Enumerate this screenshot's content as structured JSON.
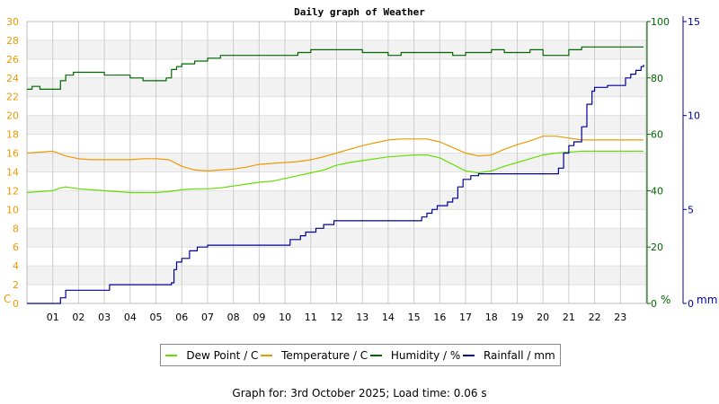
{
  "chart_data": {
    "type": "line",
    "title": "Daily graph of Weather",
    "x_ticks": [
      "01",
      "02",
      "03",
      "04",
      "05",
      "06",
      "07",
      "08",
      "09",
      "10",
      "11",
      "12",
      "13",
      "14",
      "15",
      "16",
      "17",
      "18",
      "19",
      "20",
      "21",
      "22",
      "23"
    ],
    "xlim": [
      0,
      24
    ],
    "y_left": {
      "unit": "C",
      "ylim": [
        0,
        30
      ],
      "ticks": [
        0,
        2,
        4,
        6,
        8,
        10,
        12,
        14,
        16,
        18,
        20,
        22,
        24,
        26,
        28,
        30
      ]
    },
    "y_humidity": {
      "unit": "%",
      "ylim": [
        0,
        100
      ],
      "ticks": [
        0,
        20,
        40,
        60,
        80,
        100
      ]
    },
    "y_rain": {
      "unit": "mm",
      "ylim": [
        0,
        15
      ],
      "ticks": [
        0,
        5,
        10,
        15
      ]
    },
    "grid": true,
    "legend_position": "bottom-center",
    "series": [
      {
        "name": "Dew Point / C",
        "axis": "left",
        "color": "#66dd00",
        "line": "smooth",
        "x": [
          0,
          0.5,
          1,
          1.3,
          1.5,
          2,
          2.5,
          3,
          3.5,
          4,
          4.5,
          5,
          5.5,
          6,
          6.5,
          7,
          7.5,
          8,
          8.5,
          9,
          9.5,
          10,
          10.5,
          11,
          11.5,
          12,
          12.5,
          13,
          13.5,
          14,
          14.5,
          15,
          15.5,
          16,
          16.5,
          17,
          17.5,
          18,
          18.5,
          19,
          19.5,
          20,
          20.5,
          21,
          21.5,
          22,
          22.5,
          23,
          23.9
        ],
        "y": [
          11.8,
          11.9,
          12.0,
          12.3,
          12.4,
          12.2,
          12.1,
          12.0,
          11.9,
          11.8,
          11.8,
          11.8,
          11.9,
          12.1,
          12.2,
          12.2,
          12.3,
          12.5,
          12.7,
          12.9,
          13.0,
          13.3,
          13.6,
          13.9,
          14.2,
          14.7,
          15.0,
          15.2,
          15.4,
          15.6,
          15.7,
          15.8,
          15.8,
          15.5,
          14.8,
          14.1,
          13.9,
          14.1,
          14.6,
          15.0,
          15.4,
          15.8,
          16.0,
          16.1,
          16.2,
          16.2,
          16.2,
          16.2,
          16.2
        ]
      },
      {
        "name": "Temperature / C",
        "axis": "left",
        "color": "#ee9900",
        "line": "smooth",
        "x": [
          0,
          0.5,
          1,
          1.5,
          2,
          2.5,
          3,
          3.5,
          4,
          4.5,
          5,
          5.5,
          6,
          6.5,
          7,
          7.5,
          8,
          8.5,
          9,
          9.5,
          10,
          10.5,
          11,
          11.5,
          12,
          12.5,
          13,
          13.5,
          14,
          14.5,
          15,
          15.5,
          16,
          16.5,
          17,
          17.5,
          18,
          18.5,
          19,
          19.5,
          20,
          20.5,
          21,
          21.5,
          22,
          22.5,
          23,
          23.9
        ],
        "y": [
          16.0,
          16.1,
          16.2,
          15.7,
          15.4,
          15.3,
          15.3,
          15.3,
          15.3,
          15.4,
          15.4,
          15.3,
          14.6,
          14.2,
          14.1,
          14.2,
          14.3,
          14.5,
          14.8,
          14.9,
          15.0,
          15.1,
          15.3,
          15.6,
          16.0,
          16.4,
          16.8,
          17.1,
          17.4,
          17.5,
          17.5,
          17.5,
          17.2,
          16.6,
          16.0,
          15.7,
          15.8,
          16.4,
          16.9,
          17.3,
          17.8,
          17.8,
          17.6,
          17.4,
          17.4,
          17.4,
          17.4,
          17.4
        ]
      },
      {
        "name": "Humidity / %",
        "axis": "humidity",
        "color": "#006600",
        "line": "step",
        "x": [
          0,
          0.2,
          0.5,
          1.0,
          1.3,
          1.5,
          1.8,
          2.0,
          3.0,
          3.5,
          4.0,
          4.5,
          5.0,
          5.4,
          5.6,
          5.8,
          6.0,
          6.5,
          7.0,
          7.5,
          8.0,
          9.0,
          10.0,
          10.5,
          11.0,
          12.0,
          12.5,
          13.0,
          13.5,
          14.0,
          14.5,
          15.0,
          16.0,
          16.5,
          17.0,
          17.5,
          18.0,
          18.5,
          19.0,
          19.5,
          20.0,
          20.5,
          21.0,
          21.5,
          22.0,
          22.5,
          23.0,
          23.9
        ],
        "y": [
          76,
          77,
          76,
          76,
          79,
          81,
          82,
          82,
          81,
          81,
          80,
          79,
          79,
          80,
          83,
          84,
          85,
          86,
          87,
          88,
          88,
          88,
          88,
          89,
          90,
          90,
          90,
          89,
          89,
          88,
          89,
          89,
          89,
          88,
          89,
          89,
          90,
          89,
          89,
          90,
          88,
          88,
          90,
          91,
          91,
          91,
          91,
          91
        ]
      },
      {
        "name": "Rainfall / mm",
        "axis": "rain",
        "color": "#000099",
        "line": "step",
        "x": [
          0,
          1.2,
          1.3,
          1.5,
          3.2,
          5.6,
          5.7,
          5.8,
          6.0,
          6.3,
          6.6,
          7.0,
          7.3,
          7.5,
          8.0,
          9.0,
          10.2,
          10.6,
          10.8,
          11.2,
          11.5,
          11.9,
          12.5,
          13.0,
          14.0,
          15.0,
          15.3,
          15.5,
          15.7,
          15.9,
          16.3,
          16.5,
          16.7,
          16.9,
          17.2,
          17.5,
          18.0,
          19.0,
          20.0,
          20.6,
          20.8,
          21.0,
          21.2,
          21.5,
          21.7,
          21.9,
          22.0,
          22.5,
          23.0,
          23.2,
          23.4,
          23.6,
          23.8,
          23.9
        ],
        "y": [
          0,
          0,
          0.3,
          0.7,
          1.0,
          1.1,
          1.8,
          2.2,
          2.4,
          2.8,
          3.0,
          3.1,
          3.1,
          3.1,
          3.1,
          3.1,
          3.4,
          3.6,
          3.8,
          4.0,
          4.2,
          4.4,
          4.4,
          4.4,
          4.4,
          4.4,
          4.6,
          4.8,
          5.0,
          5.2,
          5.4,
          5.6,
          6.2,
          6.6,
          6.8,
          6.9,
          6.9,
          6.9,
          6.9,
          7.2,
          8.0,
          8.4,
          8.6,
          9.4,
          10.6,
          11.3,
          11.5,
          11.6,
          11.6,
          12.0,
          12.2,
          12.4,
          12.6,
          12.7
        ]
      }
    ]
  },
  "legend": {
    "items": [
      {
        "label": "Dew Point / C",
        "color": "#66dd00"
      },
      {
        "label": "Temperature / C",
        "color": "#ee9900"
      },
      {
        "label": "Humidity / %",
        "color": "#006600"
      },
      {
        "label": "Rainfall / mm",
        "color": "#000099"
      }
    ]
  },
  "footer": {
    "text": "Graph for: 3rd October 2025; Load time: 0.06 s"
  },
  "colors": {
    "temp_axis": "#ee9900",
    "humidity_axis": "#006600",
    "rain_axis": "#000099",
    "band": "#f2f2f2",
    "grid": "#cccccc"
  }
}
